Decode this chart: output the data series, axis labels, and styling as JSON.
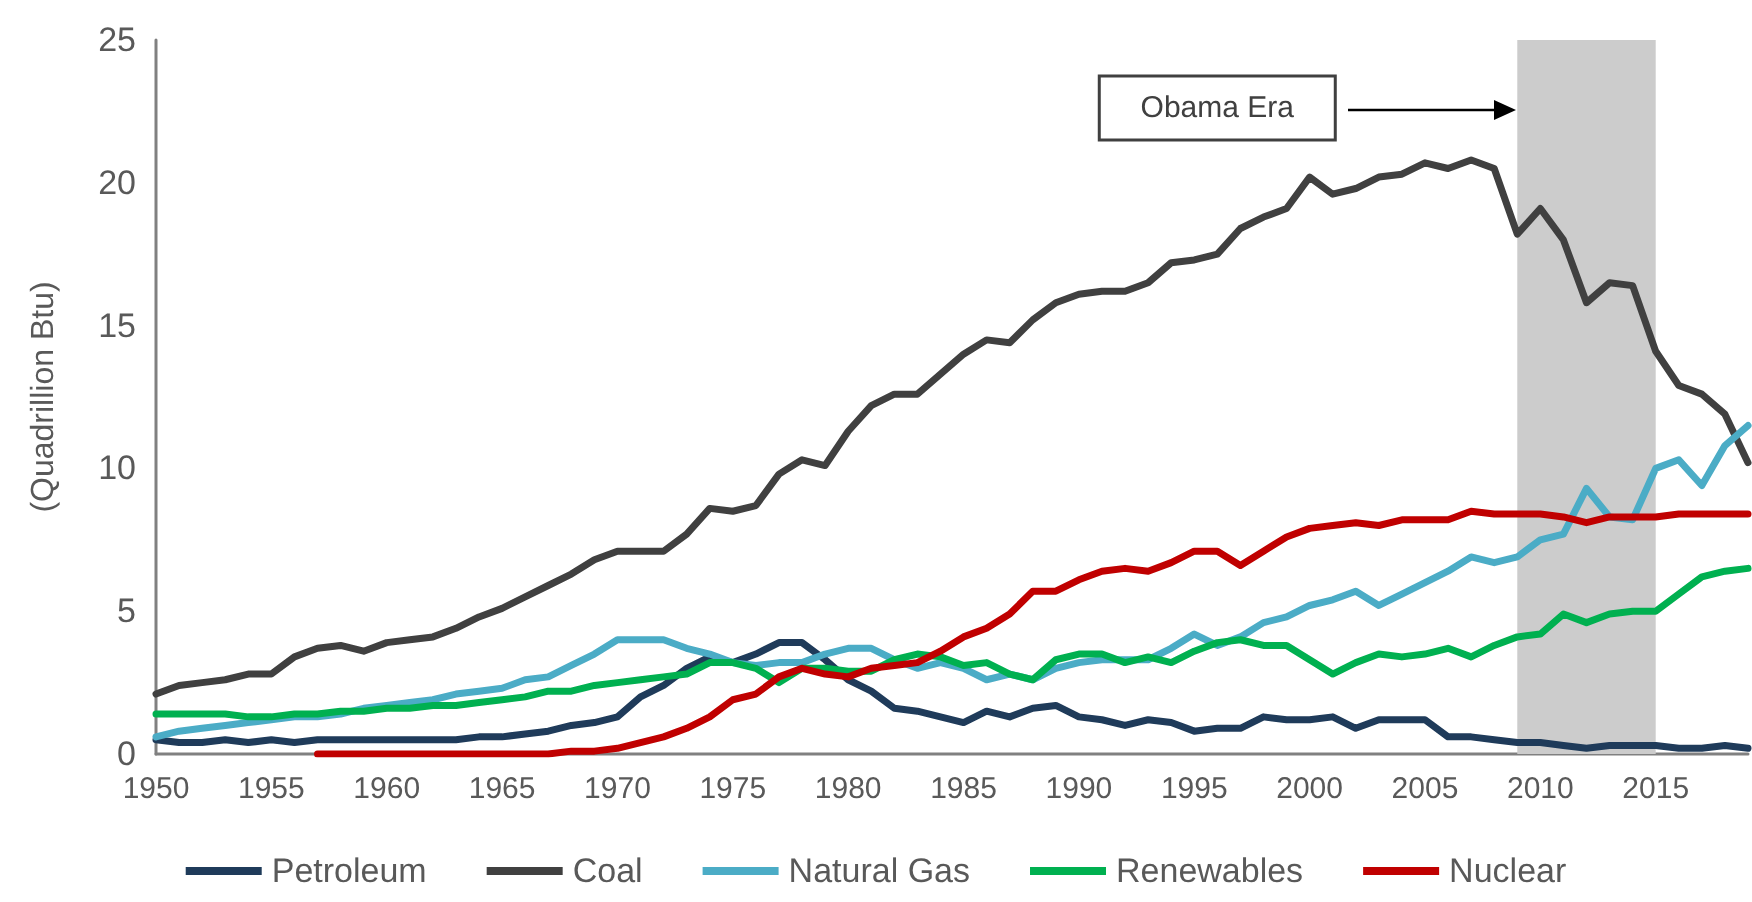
{
  "chart_data": {
    "type": "line",
    "ylabel": "(Quadrillion Btu)",
    "x": [
      1950,
      1951,
      1952,
      1953,
      1954,
      1955,
      1956,
      1957,
      1958,
      1959,
      1960,
      1961,
      1962,
      1963,
      1964,
      1965,
      1966,
      1967,
      1968,
      1969,
      1970,
      1971,
      1972,
      1973,
      1974,
      1975,
      1976,
      1977,
      1978,
      1979,
      1980,
      1981,
      1982,
      1983,
      1984,
      1985,
      1986,
      1987,
      1988,
      1989,
      1990,
      1991,
      1992,
      1993,
      1994,
      1995,
      1996,
      1997,
      1998,
      1999,
      2000,
      2001,
      2002,
      2003,
      2004,
      2005,
      2006,
      2007,
      2008,
      2009,
      2010,
      2011,
      2012,
      2013,
      2014,
      2015,
      2016,
      2017,
      2018,
      2019
    ],
    "xlim": [
      1950,
      2019
    ],
    "xticks": [
      1950,
      1955,
      1960,
      1965,
      1970,
      1975,
      1980,
      1985,
      1990,
      1995,
      2000,
      2005,
      2010,
      2015
    ],
    "ylim": [
      0,
      25
    ],
    "yticks": [
      0,
      5,
      10,
      15,
      20,
      25
    ],
    "grid": false,
    "legend": "bottom",
    "line_style": "solid",
    "marker": "none",
    "series": [
      {
        "name": "Petroleum",
        "color": "#1f3b5a",
        "values": [
          0.5,
          0.4,
          0.4,
          0.5,
          0.4,
          0.5,
          0.4,
          0.5,
          0.5,
          0.5,
          0.5,
          0.5,
          0.5,
          0.5,
          0.6,
          0.6,
          0.7,
          0.8,
          1.0,
          1.1,
          1.3,
          2.0,
          2.4,
          3.0,
          3.4,
          3.2,
          3.5,
          3.9,
          3.9,
          3.3,
          2.6,
          2.2,
          1.6,
          1.5,
          1.3,
          1.1,
          1.5,
          1.3,
          1.6,
          1.7,
          1.3,
          1.2,
          1.0,
          1.2,
          1.1,
          0.8,
          0.9,
          0.9,
          1.3,
          1.2,
          1.2,
          1.3,
          0.9,
          1.2,
          1.2,
          1.2,
          0.6,
          0.6,
          0.5,
          0.4,
          0.4,
          0.3,
          0.2,
          0.3,
          0.3,
          0.3,
          0.2,
          0.2,
          0.3,
          0.2
        ]
      },
      {
        "name": "Coal",
        "color": "#404040",
        "values": [
          2.1,
          2.4,
          2.5,
          2.6,
          2.8,
          2.8,
          3.4,
          3.7,
          3.8,
          3.6,
          3.9,
          4.0,
          4.1,
          4.4,
          4.8,
          5.1,
          5.5,
          5.9,
          6.3,
          6.8,
          7.1,
          7.1,
          7.1,
          7.7,
          8.6,
          8.5,
          8.7,
          9.8,
          10.3,
          10.1,
          11.3,
          12.2,
          12.6,
          12.6,
          13.3,
          14.0,
          14.5,
          14.4,
          15.2,
          15.8,
          16.1,
          16.2,
          16.2,
          16.5,
          17.2,
          17.3,
          17.5,
          18.4,
          18.8,
          19.1,
          20.2,
          19.6,
          19.8,
          20.2,
          20.3,
          20.7,
          20.5,
          20.8,
          20.5,
          18.2,
          19.1,
          18.0,
          15.8,
          16.5,
          16.4,
          14.1,
          12.9,
          12.6,
          11.9,
          10.2
        ]
      },
      {
        "name": "Natural Gas",
        "color": "#4bacc6",
        "values": [
          0.6,
          0.8,
          0.9,
          1.0,
          1.1,
          1.2,
          1.3,
          1.3,
          1.4,
          1.6,
          1.7,
          1.8,
          1.9,
          2.1,
          2.2,
          2.3,
          2.6,
          2.7,
          3.1,
          3.5,
          4.0,
          4.0,
          4.0,
          3.7,
          3.5,
          3.2,
          3.1,
          3.2,
          3.2,
          3.5,
          3.7,
          3.7,
          3.3,
          3.0,
          3.2,
          3.0,
          2.6,
          2.8,
          2.6,
          3.0,
          3.2,
          3.3,
          3.3,
          3.3,
          3.7,
          4.2,
          3.8,
          4.1,
          4.6,
          4.8,
          5.2,
          5.4,
          5.7,
          5.2,
          5.6,
          6.0,
          6.4,
          6.9,
          6.7,
          6.9,
          7.5,
          7.7,
          9.3,
          8.3,
          8.2,
          10.0,
          10.3,
          9.4,
          10.8,
          11.5
        ]
      },
      {
        "name": "Renewables",
        "color": "#00b050",
        "values": [
          1.4,
          1.4,
          1.4,
          1.4,
          1.3,
          1.3,
          1.4,
          1.4,
          1.5,
          1.5,
          1.6,
          1.6,
          1.7,
          1.7,
          1.8,
          1.9,
          2.0,
          2.2,
          2.2,
          2.4,
          2.5,
          2.6,
          2.7,
          2.8,
          3.2,
          3.2,
          3.0,
          2.5,
          3.0,
          3.0,
          2.9,
          2.9,
          3.3,
          3.5,
          3.4,
          3.1,
          3.2,
          2.8,
          2.6,
          3.3,
          3.5,
          3.5,
          3.2,
          3.4,
          3.2,
          3.6,
          3.9,
          4.0,
          3.8,
          3.8,
          3.3,
          2.8,
          3.2,
          3.5,
          3.4,
          3.5,
          3.7,
          3.4,
          3.8,
          4.1,
          4.2,
          4.9,
          4.6,
          4.9,
          5.0,
          5.0,
          5.6,
          6.2,
          6.4,
          6.5
        ]
      },
      {
        "name": "Nuclear",
        "color": "#c00000",
        "values": [
          null,
          null,
          null,
          null,
          null,
          null,
          null,
          0.0,
          0.0,
          0.0,
          0.0,
          0.0,
          0.0,
          0.0,
          0.0,
          0.0,
          0.0,
          0.0,
          0.1,
          0.1,
          0.2,
          0.4,
          0.6,
          0.9,
          1.3,
          1.9,
          2.1,
          2.7,
          3.0,
          2.8,
          2.7,
          3.0,
          3.1,
          3.2,
          3.6,
          4.1,
          4.4,
          4.9,
          5.7,
          5.7,
          6.1,
          6.4,
          6.5,
          6.4,
          6.7,
          7.1,
          7.1,
          6.6,
          7.1,
          7.6,
          7.9,
          8.0,
          8.1,
          8.0,
          8.2,
          8.2,
          8.2,
          8.5,
          8.4,
          8.4,
          8.4,
          8.3,
          8.1,
          8.3,
          8.3,
          8.3,
          8.4,
          8.4,
          8.4,
          8.4
        ]
      }
    ],
    "bands": [
      {
        "axis": "x",
        "from": 2009,
        "to": 2015,
        "color": "#cccccc"
      }
    ],
    "annotations": [
      "Obama Era"
    ]
  }
}
